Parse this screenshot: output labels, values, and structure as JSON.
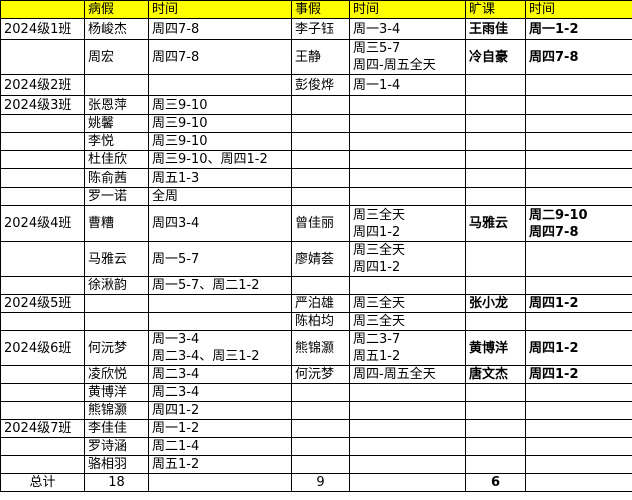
{
  "headers": [
    "",
    "病假",
    "时间",
    "事假",
    "时间",
    "旷课",
    "时间"
  ],
  "header_color": "#ffff00",
  "rows": [
    [
      "2024级1班",
      "杨峻杰",
      "周四7-8",
      "李子钰",
      "周一3-4",
      "王雨佳",
      "周一1-2"
    ],
    [
      "",
      "周宏",
      "周四7-8",
      "王静",
      "周三5-7\n周四-周五全天",
      "冷自豪",
      "周四7-8"
    ],
    [
      "2024级2班",
      "",
      "",
      "彭俊烨",
      "周一1-4",
      "",
      ""
    ],
    [
      "2024级3班",
      "张恩萍",
      "周三9-10",
      "",
      "",
      "",
      ""
    ],
    [
      "",
      "姚馨",
      "周三9-10",
      "",
      "",
      "",
      ""
    ],
    [
      "",
      "李悦",
      "周三9-10",
      "",
      "",
      "",
      ""
    ],
    [
      "",
      "杜佳欣",
      "周三9-10、周四1-2",
      "",
      "",
      "",
      ""
    ],
    [
      "",
      "陈俞茜",
      "周五1-3",
      "",
      "",
      "",
      ""
    ],
    [
      "",
      "罗一诺",
      "全周",
      "",
      "",
      "",
      ""
    ],
    [
      "2024级4班",
      "曹糟",
      "周四3-4",
      "曾佳丽",
      "周三全天\n周四1-2",
      "马雅云",
      "周二9-10\n周四7-8"
    ],
    [
      "",
      "马雅云",
      "周一5-7",
      "廖婧荟",
      "周三全天\n周四1-2",
      "",
      ""
    ],
    [
      "",
      "徐湫韵",
      "周一5-7、周二1-2",
      "",
      "",
      "",
      ""
    ],
    [
      "2024级5班",
      "",
      "",
      "严泊雄",
      "周三全天",
      "张小龙",
      "周四1-2"
    ],
    [
      "",
      "",
      "",
      "陈柏均",
      "周三全天",
      "",
      ""
    ],
    [
      "2024级6班",
      "何沅梦",
      "周一3-4\n周二3-4、周三1-2",
      "熊锦灏",
      "周二3-7\n周五1-2",
      "黄博洋",
      "周四1-2"
    ],
    [
      "",
      "凌欣悦",
      "周二3-4",
      "何沅梦",
      "周四-周五全天",
      "唐文杰",
      "周四1-2"
    ],
    [
      "",
      "黄博洋",
      "周二3-4",
      "",
      "",
      "",
      ""
    ],
    [
      "",
      "熊锦灏",
      "周四1-2",
      "",
      "",
      "",
      ""
    ],
    [
      "2024级7班",
      "李佳佳",
      "周一1-2",
      "",
      "",
      "",
      ""
    ],
    [
      "",
      "罗诗涵",
      "周二1-4",
      "",
      "",
      "",
      ""
    ],
    [
      "",
      "骆相羽",
      "周五1-2",
      "",
      "",
      "",
      ""
    ]
  ],
  "totals": [
    "总计",
    "18",
    "",
    "9",
    "",
    "6",
    ""
  ]
}
